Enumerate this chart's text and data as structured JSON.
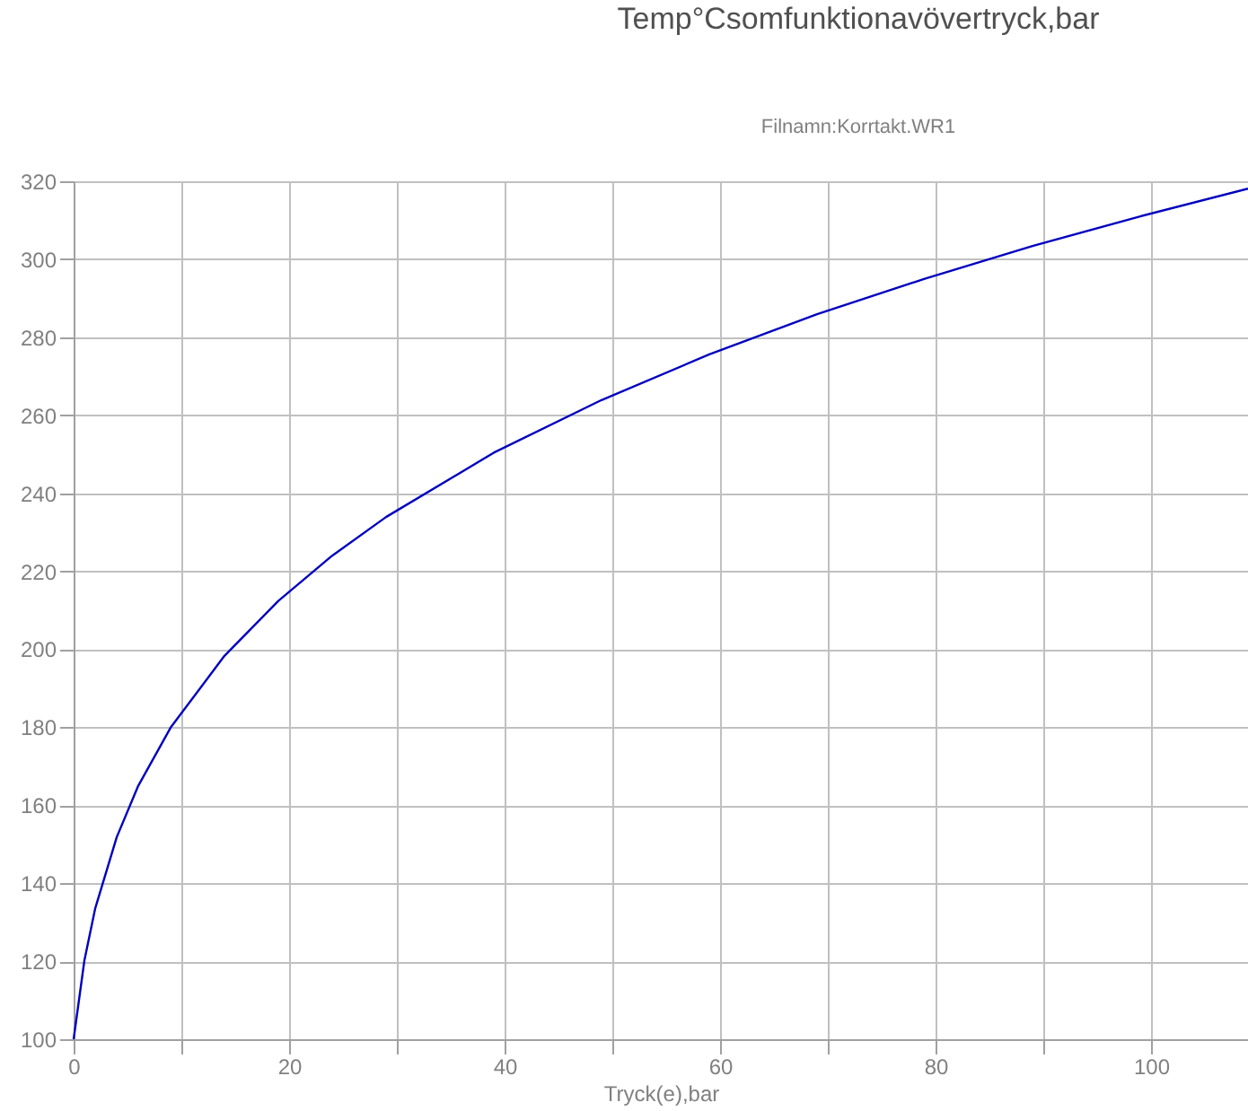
{
  "chart_data": {
    "type": "line",
    "title": "Temp°Csomfunktionavövertryck,bar",
    "subtitle": "Filnamn:Korrtakt.WR1",
    "xlabel": "Tryck(e),bar",
    "x": [
      0,
      1,
      2,
      4,
      6,
      9,
      14,
      19,
      24,
      29,
      39,
      49,
      59,
      69,
      79,
      89,
      99,
      109
    ],
    "series": [
      {
        "color": "#0000c0",
        "values": [
          100,
          120.2,
          133.5,
          151.8,
          165,
          179.9,
          198.3,
          212.4,
          224,
          233.9,
          250.4,
          263.9,
          275.6,
          285.9,
          295,
          303.4,
          311,
          318.1
        ]
      }
    ],
    "xlim": [
      0,
      109
    ],
    "xticks": [
      0,
      {
        "value": 10,
        "label": null
      },
      20,
      {
        "value": 30,
        "label": null
      },
      40,
      {
        "value": 50,
        "label": null
      },
      60,
      {
        "value": 70,
        "label": null
      },
      80,
      {
        "value": 90,
        "label": null
      },
      100
    ],
    "ylim": [
      100,
      320
    ],
    "yticks": [
      100,
      120,
      140,
      160,
      180,
      200,
      220,
      240,
      260,
      280,
      300,
      320
    ],
    "grid": true,
    "marker": "none",
    "line_style": "solid"
  }
}
